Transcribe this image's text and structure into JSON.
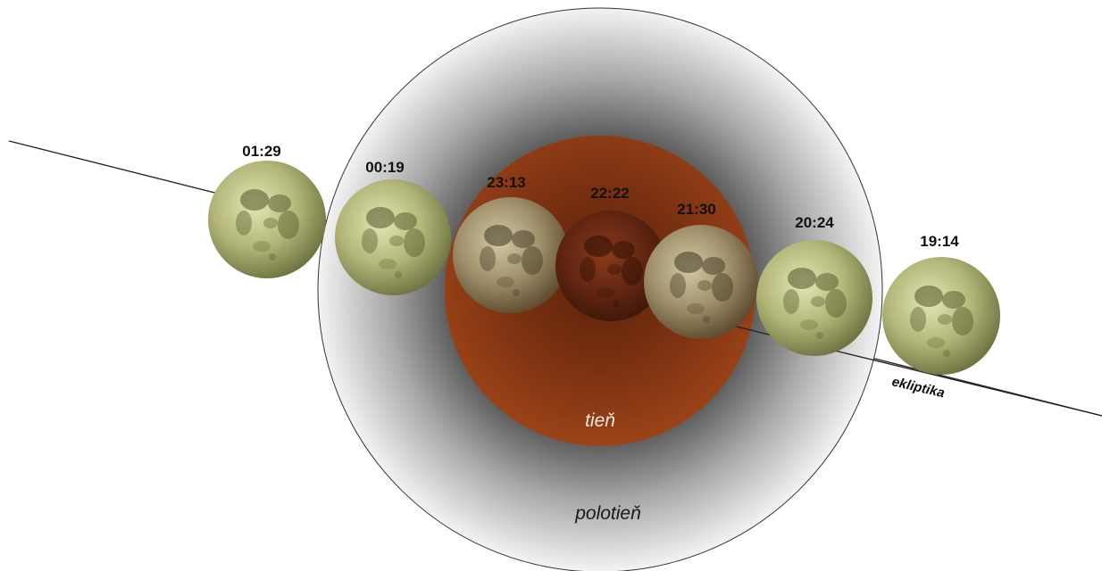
{
  "labels": {
    "umbra": "tieň",
    "penumbra": "polotieň",
    "ecliptic": "ekliptika"
  },
  "moons": [
    {
      "time": "01:29",
      "phase": "outside"
    },
    {
      "time": "00:19",
      "phase": "penumbra"
    },
    {
      "time": "23:13",
      "phase": "partial"
    },
    {
      "time": "22:22",
      "phase": "total"
    },
    {
      "time": "21:30",
      "phase": "partial"
    },
    {
      "time": "20:24",
      "phase": "penumbra"
    },
    {
      "time": "19:14",
      "phase": "outside"
    }
  ],
  "colors": {
    "umbra": "#8f3a13",
    "penumbra_edge": "#f2f2f2",
    "penumbra_core": "#2e2e2e",
    "moon_light": "#d8dba0",
    "moon_dark": "#5c6133",
    "moon_eclipsed": "#6a2a12"
  }
}
